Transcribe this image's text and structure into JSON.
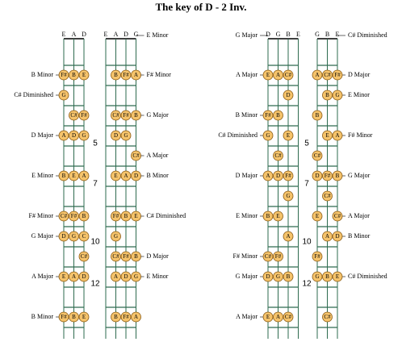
{
  "title": "The key of D - 2 Inv.",
  "fret_numbers": [
    "5",
    "7",
    "10",
    "12"
  ],
  "boards": [
    {
      "strings": [
        "E",
        "A",
        "D"
      ],
      "side": "left",
      "rows": [
        {
          "label": "B Minor",
          "notes": [
            "F#",
            "B",
            "E"
          ]
        },
        {
          "label": "C# Diminished",
          "notes": [
            "G",
            null,
            null
          ]
        },
        {
          "notes": [
            null,
            "C#",
            "F#"
          ]
        },
        {
          "label": "D Major",
          "notes": [
            "A",
            "D",
            "G"
          ]
        },
        {
          "notes": []
        },
        {
          "label": "E Minor",
          "notes": [
            "B",
            "E",
            "A"
          ]
        },
        {
          "notes": []
        },
        {
          "label": "F# Minor",
          "notes": [
            "C#",
            "F#",
            "B"
          ]
        },
        {
          "label": "G Major",
          "notes": [
            "D",
            "G",
            "C"
          ]
        },
        {
          "notes": [
            null,
            null,
            "C#"
          ]
        },
        {
          "label": "A Major",
          "notes": [
            "E",
            "A",
            "D"
          ]
        },
        {
          "notes": []
        },
        {
          "label": "B Minor",
          "notes": [
            "F#",
            "B",
            "E"
          ]
        }
      ]
    },
    {
      "strings": [
        "E",
        "A",
        "D",
        "G"
      ],
      "side": "right",
      "open_label": "E Minor",
      "rows": [
        {
          "label": "F# Minor",
          "notes": [
            null,
            "B",
            "F#",
            "A"
          ]
        },
        {
          "notes": []
        },
        {
          "label": "G Major",
          "notes": [
            null,
            "C#",
            "F#",
            "B"
          ]
        },
        {
          "notes": [
            null,
            "D",
            "G",
            null
          ]
        },
        {
          "label": "A Major",
          "notes": [
            null,
            null,
            null,
            "C#"
          ]
        },
        {
          "label": "B Minor",
          "notes": [
            null,
            "E",
            "A",
            "D"
          ]
        },
        {
          "notes": []
        },
        {
          "label": "C# Diminished",
          "notes": [
            null,
            "F#",
            "B",
            "E"
          ]
        },
        {
          "notes": [
            null,
            "G",
            null,
            null
          ]
        },
        {
          "label": "D Major",
          "notes": [
            null,
            "C#",
            "F#",
            "B"
          ]
        },
        {
          "label": "E Minor",
          "notes": [
            null,
            "A",
            "D",
            "G"
          ]
        },
        {
          "notes": []
        },
        {
          "notes": [
            null,
            "B",
            "F#",
            "A"
          ]
        }
      ]
    },
    {
      "strings": [
        "D",
        "G",
        "B",
        "E"
      ],
      "side": "left",
      "open_label": "G Major",
      "rows": [
        {
          "label": "A Major",
          "notes": [
            "E",
            "A",
            "C#",
            null
          ]
        },
        {
          "notes": [
            null,
            null,
            "D",
            null
          ]
        },
        {
          "label": "B Minor",
          "notes": [
            "F#",
            "B",
            null,
            null
          ]
        },
        {
          "label": "C# Diminished",
          "notes": [
            "G",
            null,
            "E",
            null
          ]
        },
        {
          "notes": [
            null,
            "C#",
            null,
            null
          ]
        },
        {
          "label": "D Major",
          "notes": [
            "A",
            "D",
            "F#",
            null
          ]
        },
        {
          "notes": [
            null,
            null,
            "G",
            null
          ]
        },
        {
          "label": "E Minor",
          "notes": [
            "B",
            "E",
            null,
            null
          ]
        },
        {
          "notes": [
            null,
            null,
            "A",
            null
          ]
        },
        {
          "label": "F# Minor",
          "notes": [
            "C#",
            "F#",
            null,
            null
          ]
        },
        {
          "label": "G Major",
          "notes": [
            "D",
            "G",
            "B",
            null
          ]
        },
        {
          "notes": []
        },
        {
          "label": "A Major",
          "notes": [
            "E",
            "A",
            "C#",
            null
          ]
        }
      ]
    },
    {
      "strings": [
        "G",
        "B",
        "E"
      ],
      "side": "right",
      "open_label": "C# Diminished",
      "rows": [
        {
          "label": "D Major",
          "notes": [
            "A",
            "C#",
            "F#"
          ]
        },
        {
          "label": "E Minor",
          "notes": [
            null,
            "B",
            "G"
          ]
        },
        {
          "notes": [
            "B",
            null,
            null
          ]
        },
        {
          "label": "F# Minor",
          "notes": [
            null,
            "E",
            "A"
          ]
        },
        {
          "notes": [
            "C#",
            null,
            null
          ]
        },
        {
          "label": "G Major",
          "notes": [
            "D",
            "F#",
            "B"
          ]
        },
        {
          "notes": [
            null,
            "C#",
            null
          ]
        },
        {
          "label": "A Major",
          "notes": [
            "E",
            null,
            "C#"
          ]
        },
        {
          "label": "B Minor",
          "notes": [
            null,
            "A",
            "D"
          ]
        },
        {
          "notes": [
            "F#",
            null,
            null
          ]
        },
        {
          "label": "C# Diminished",
          "notes": [
            "G",
            "B",
            "E"
          ]
        },
        {
          "notes": []
        },
        {
          "notes": [
            null,
            "C#",
            null
          ]
        }
      ]
    }
  ]
}
